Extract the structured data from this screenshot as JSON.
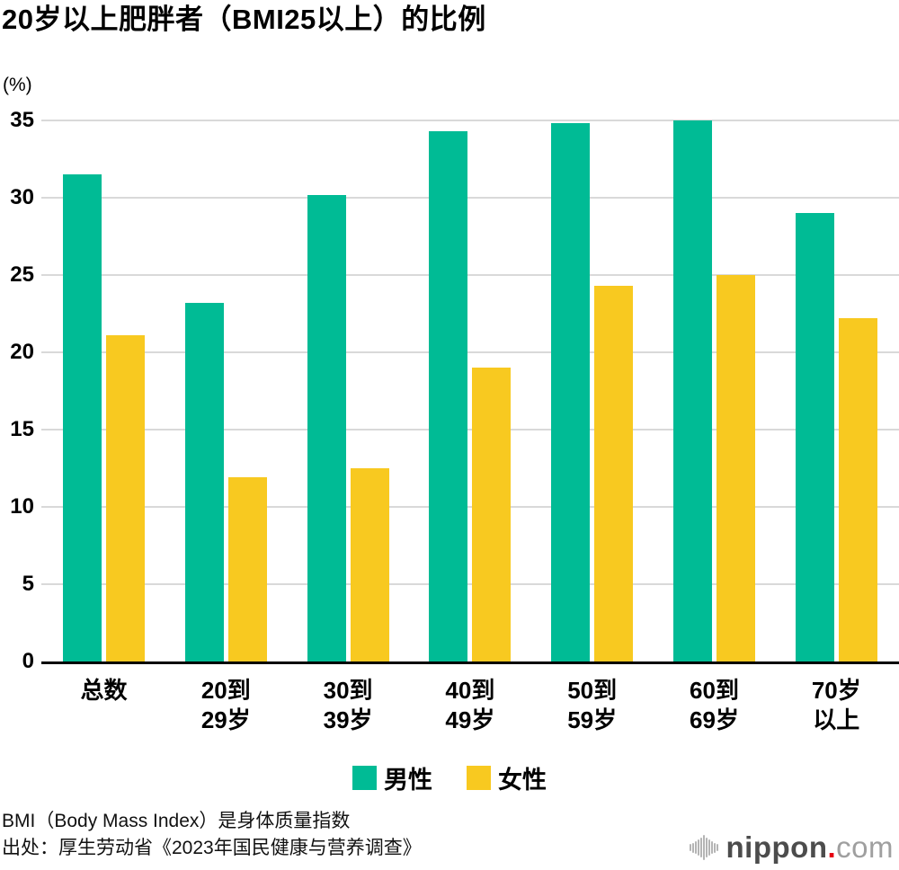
{
  "chart_data": {
    "type": "bar",
    "title": "20岁以上肥胖者（BMI25以上）的比例",
    "unit_label": "(%)",
    "categories": [
      "总数",
      "20到29岁",
      "30到39岁",
      "40到49岁",
      "50到59岁",
      "60到69岁",
      "70岁以上"
    ],
    "category_lines": [
      [
        "总数"
      ],
      [
        "20到",
        "29岁"
      ],
      [
        "30到",
        "39岁"
      ],
      [
        "40到",
        "49岁"
      ],
      [
        "50到",
        "59岁"
      ],
      [
        "60到",
        "69岁"
      ],
      [
        "70岁",
        "以上"
      ]
    ],
    "series": [
      {
        "key": "male",
        "name": "男性",
        "color": "#00BB95",
        "values": [
          31.5,
          23.2,
          30.2,
          34.3,
          34.8,
          35.0,
          29.0
        ]
      },
      {
        "key": "female",
        "name": "女性",
        "color": "#F8C920",
        "values": [
          21.1,
          11.9,
          12.5,
          19.0,
          24.3,
          25.0,
          22.2
        ]
      }
    ],
    "ylim": [
      0,
      35
    ],
    "yticks": [
      0,
      5,
      10,
      15,
      20,
      25,
      30,
      35
    ],
    "grid": "horizontal-only",
    "gridline_color": "#d9d9d9",
    "axis_color": "#000000",
    "legend_position": "bottom"
  },
  "footer": {
    "line1": "BMI（Body Mass Index）是身体质量指数",
    "line2": "出处：厚生劳动省《2023年国民健康与营养调查》"
  },
  "logo": {
    "icon": "soundwave-icon",
    "bold": "nippon",
    "dot": ".",
    "light": "com",
    "dot_color": "#e60012"
  }
}
